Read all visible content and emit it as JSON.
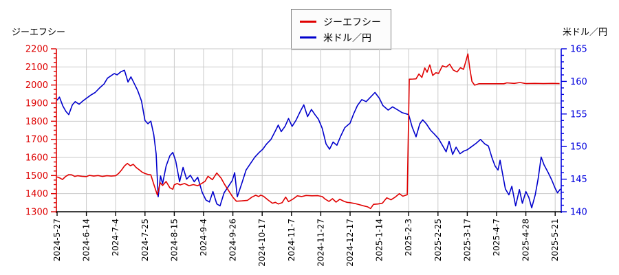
{
  "page": {
    "title_left": "ジーエフシー",
    "title_right": "米ドル／円"
  },
  "legend": {
    "items": [
      {
        "label": "ジーエフシー",
        "color": "#e00000"
      },
      {
        "label": "米ドル／円",
        "color": "#0000cc"
      }
    ]
  },
  "chart_data": {
    "type": "line",
    "title": "ジーエフシー (stock price, left axis) vs 米ドル／円 (USD/JPY, right axis)",
    "grid": true,
    "legend_position": "top-center",
    "x_tick_labels": [
      "2024-5-27",
      "2024-6-14",
      "2024-7-4",
      "2024-7-25",
      "2024-8-15",
      "2024-9-4",
      "2024-9-26",
      "2024-10-17",
      "2024-11-7",
      "2024-11-27",
      "2024-12-17",
      "2025-1-14",
      "2025-2-3",
      "2025-2-25",
      "2025-3-17",
      "2025-4-7",
      "2025-4-28",
      "2025-5-21"
    ],
    "left_axis": {
      "label": "ジーエフシー",
      "color": "#dd0000",
      "min": 1300,
      "max": 2200,
      "major_step": 100,
      "minor_step": 25,
      "tick_labels": [
        "2200",
        "2100",
        "2000",
        "1900",
        "1800",
        "1700",
        "1600",
        "1500",
        "1400",
        "1300"
      ]
    },
    "right_axis": {
      "label": "米ドル／円",
      "color": "#0000dd",
      "min": 140,
      "max": 165,
      "major_step": 5,
      "minor_step": 1,
      "tick_labels": [
        "165",
        "160",
        "155",
        "150",
        "145",
        "140"
      ]
    },
    "x_unit": "tick_index (0 = 2024-5-27 … 17 = 2025-5-21, ~15 trading days per tick)",
    "series": [
      {
        "name": "ジーエフシー",
        "axis": "left",
        "color": "#e00000",
        "points": [
          [
            0,
            1492
          ],
          [
            0.1,
            1486
          ],
          [
            0.18,
            1478
          ],
          [
            0.3,
            1496
          ],
          [
            0.4,
            1505
          ],
          [
            0.5,
            1504
          ],
          [
            0.6,
            1495
          ],
          [
            0.7,
            1499
          ],
          [
            0.85,
            1496
          ],
          [
            1,
            1494
          ],
          [
            1.1,
            1501
          ],
          [
            1.25,
            1497
          ],
          [
            1.4,
            1500
          ],
          [
            1.55,
            1495
          ],
          [
            1.7,
            1499
          ],
          [
            1.85,
            1497
          ],
          [
            2,
            1499
          ],
          [
            2.1,
            1512
          ],
          [
            2.2,
            1530
          ],
          [
            2.3,
            1553
          ],
          [
            2.4,
            1567
          ],
          [
            2.5,
            1554
          ],
          [
            2.6,
            1562
          ],
          [
            2.7,
            1544
          ],
          [
            2.8,
            1532
          ],
          [
            2.9,
            1519
          ],
          [
            3,
            1511
          ],
          [
            3.1,
            1506
          ],
          [
            3.2,
            1504
          ],
          [
            3.3,
            1452
          ],
          [
            3.42,
            1393
          ],
          [
            3.52,
            1460
          ],
          [
            3.6,
            1445
          ],
          [
            3.72,
            1467
          ],
          [
            3.85,
            1432
          ],
          [
            3.95,
            1424
          ],
          [
            4,
            1449
          ],
          [
            4.1,
            1456
          ],
          [
            4.2,
            1448
          ],
          [
            4.35,
            1456
          ],
          [
            4.5,
            1444
          ],
          [
            4.65,
            1450
          ],
          [
            4.8,
            1444
          ],
          [
            4.95,
            1458
          ],
          [
            5.05,
            1468
          ],
          [
            5.15,
            1496
          ],
          [
            5.3,
            1477
          ],
          [
            5.45,
            1514
          ],
          [
            5.6,
            1485
          ],
          [
            5.72,
            1450
          ],
          [
            5.85,
            1418
          ],
          [
            6,
            1380
          ],
          [
            6.12,
            1358
          ],
          [
            6.3,
            1360
          ],
          [
            6.5,
            1363
          ],
          [
            6.65,
            1381
          ],
          [
            6.78,
            1391
          ],
          [
            6.88,
            1384
          ],
          [
            6.95,
            1392
          ],
          [
            7.05,
            1385
          ],
          [
            7.2,
            1365
          ],
          [
            7.35,
            1347
          ],
          [
            7.45,
            1352
          ],
          [
            7.55,
            1343
          ],
          [
            7.68,
            1350
          ],
          [
            7.8,
            1381
          ],
          [
            7.9,
            1356
          ],
          [
            8.05,
            1370
          ],
          [
            8.2,
            1388
          ],
          [
            8.35,
            1384
          ],
          [
            8.5,
            1390
          ],
          [
            8.7,
            1388
          ],
          [
            8.9,
            1389
          ],
          [
            9.05,
            1384
          ],
          [
            9.15,
            1370
          ],
          [
            9.28,
            1357
          ],
          [
            9.4,
            1372
          ],
          [
            9.52,
            1353
          ],
          [
            9.65,
            1369
          ],
          [
            9.8,
            1357
          ],
          [
            9.9,
            1352
          ],
          [
            10,
            1350
          ],
          [
            10.15,
            1346
          ],
          [
            10.3,
            1340
          ],
          [
            10.45,
            1333
          ],
          [
            10.6,
            1327
          ],
          [
            10.7,
            1318
          ],
          [
            10.8,
            1341
          ],
          [
            10.95,
            1343
          ],
          [
            11.1,
            1347
          ],
          [
            11.25,
            1377
          ],
          [
            11.4,
            1366
          ],
          [
            11.55,
            1382
          ],
          [
            11.68,
            1400
          ],
          [
            11.8,
            1386
          ],
          [
            11.95,
            1394
          ],
          [
            12.02,
            2032
          ],
          [
            12.15,
            2033
          ],
          [
            12.25,
            2034
          ],
          [
            12.35,
            2061
          ],
          [
            12.45,
            2042
          ],
          [
            12.55,
            2094
          ],
          [
            12.63,
            2071
          ],
          [
            12.72,
            2111
          ],
          [
            12.82,
            2053
          ],
          [
            12.93,
            2068
          ],
          [
            13.02,
            2064
          ],
          [
            13.15,
            2106
          ],
          [
            13.28,
            2099
          ],
          [
            13.4,
            2115
          ],
          [
            13.52,
            2083
          ],
          [
            13.65,
            2072
          ],
          [
            13.77,
            2096
          ],
          [
            13.87,
            2086
          ],
          [
            13.96,
            2136
          ],
          [
            14.02,
            2172
          ],
          [
            14.08,
            2098
          ],
          [
            14.16,
            2020
          ],
          [
            14.25,
            1999
          ],
          [
            14.4,
            2007
          ],
          [
            14.7,
            2007
          ],
          [
            15,
            2007
          ],
          [
            15.25,
            2007
          ],
          [
            15.35,
            2012
          ],
          [
            15.6,
            2009
          ],
          [
            15.8,
            2014
          ],
          [
            16,
            2008
          ],
          [
            16.3,
            2009
          ],
          [
            16.6,
            2008
          ],
          [
            16.9,
            2009
          ],
          [
            17.15,
            2008
          ]
        ]
      },
      {
        "name": "米ドル／円",
        "axis": "right",
        "color": "#0000cc",
        "points": [
          [
            0,
            157.1
          ],
          [
            0.08,
            157.6
          ],
          [
            0.2,
            156.2
          ],
          [
            0.3,
            155.4
          ],
          [
            0.4,
            154.9
          ],
          [
            0.52,
            156.4
          ],
          [
            0.62,
            156.9
          ],
          [
            0.75,
            156.5
          ],
          [
            0.88,
            157.0
          ],
          [
            1,
            157.4
          ],
          [
            1.15,
            157.9
          ],
          [
            1.3,
            158.3
          ],
          [
            1.45,
            159.0
          ],
          [
            1.6,
            159.6
          ],
          [
            1.72,
            160.5
          ],
          [
            1.82,
            160.8
          ],
          [
            1.95,
            161.2
          ],
          [
            2.05,
            161.0
          ],
          [
            2.18,
            161.5
          ],
          [
            2.3,
            161.7
          ],
          [
            2.42,
            159.9
          ],
          [
            2.52,
            160.7
          ],
          [
            2.62,
            159.8
          ],
          [
            2.75,
            158.6
          ],
          [
            2.88,
            157.0
          ],
          [
            3,
            154.0
          ],
          [
            3.1,
            153.5
          ],
          [
            3.2,
            153.9
          ],
          [
            3.3,
            151.8
          ],
          [
            3.38,
            148.9
          ],
          [
            3.45,
            142.3
          ],
          [
            3.53,
            145.5
          ],
          [
            3.6,
            144.3
          ],
          [
            3.72,
            147.0
          ],
          [
            3.85,
            148.6
          ],
          [
            3.95,
            149.1
          ],
          [
            4.05,
            147.8
          ],
          [
            4.18,
            144.6
          ],
          [
            4.3,
            146.8
          ],
          [
            4.42,
            145.0
          ],
          [
            4.55,
            145.6
          ],
          [
            4.68,
            144.6
          ],
          [
            4.8,
            145.3
          ],
          [
            4.95,
            143.0
          ],
          [
            5.08,
            141.8
          ],
          [
            5.2,
            141.5
          ],
          [
            5.32,
            143.1
          ],
          [
            5.45,
            141.2
          ],
          [
            5.56,
            140.9
          ],
          [
            5.7,
            142.9
          ],
          [
            5.85,
            143.9
          ],
          [
            5.98,
            144.8
          ],
          [
            6.06,
            146.0
          ],
          [
            6.15,
            142.3
          ],
          [
            6.3,
            144.3
          ],
          [
            6.45,
            146.4
          ],
          [
            6.6,
            147.4
          ],
          [
            6.75,
            148.4
          ],
          [
            6.9,
            149.1
          ],
          [
            7.02,
            149.6
          ],
          [
            7.15,
            150.4
          ],
          [
            7.3,
            151.1
          ],
          [
            7.45,
            152.4
          ],
          [
            7.55,
            153.3
          ],
          [
            7.65,
            152.3
          ],
          [
            7.78,
            153.1
          ],
          [
            7.9,
            154.3
          ],
          [
            8.02,
            153.1
          ],
          [
            8.15,
            154.0
          ],
          [
            8.3,
            155.4
          ],
          [
            8.42,
            156.4
          ],
          [
            8.55,
            154.6
          ],
          [
            8.68,
            155.7
          ],
          [
            8.8,
            154.9
          ],
          [
            8.92,
            154.2
          ],
          [
            9.05,
            152.8
          ],
          [
            9.18,
            150.4
          ],
          [
            9.3,
            149.6
          ],
          [
            9.42,
            150.7
          ],
          [
            9.55,
            150.2
          ],
          [
            9.68,
            151.6
          ],
          [
            9.82,
            152.9
          ],
          [
            10,
            153.6
          ],
          [
            10.12,
            155.0
          ],
          [
            10.25,
            156.3
          ],
          [
            10.4,
            157.2
          ],
          [
            10.55,
            156.9
          ],
          [
            10.7,
            157.6
          ],
          [
            10.85,
            158.3
          ],
          [
            11,
            157.4
          ],
          [
            11.12,
            156.3
          ],
          [
            11.3,
            155.6
          ],
          [
            11.45,
            156.1
          ],
          [
            11.6,
            155.7
          ],
          [
            11.78,
            155.2
          ],
          [
            12,
            154.9
          ],
          [
            12.12,
            153.0
          ],
          [
            12.25,
            151.5
          ],
          [
            12.38,
            153.5
          ],
          [
            12.48,
            154.1
          ],
          [
            12.6,
            153.5
          ],
          [
            12.75,
            152.5
          ],
          [
            12.88,
            151.9
          ],
          [
            13.02,
            151.2
          ],
          [
            13.15,
            150.2
          ],
          [
            13.28,
            149.2
          ],
          [
            13.38,
            150.8
          ],
          [
            13.5,
            148.8
          ],
          [
            13.62,
            149.9
          ],
          [
            13.75,
            148.9
          ],
          [
            13.88,
            149.3
          ],
          [
            14,
            149.5
          ],
          [
            14.15,
            150.0
          ],
          [
            14.3,
            150.5
          ],
          [
            14.45,
            151.1
          ],
          [
            14.6,
            150.4
          ],
          [
            14.72,
            150.1
          ],
          [
            14.85,
            148.2
          ],
          [
            14.95,
            147.0
          ],
          [
            15.05,
            146.4
          ],
          [
            15.12,
            147.9
          ],
          [
            15.3,
            143.5
          ],
          [
            15.42,
            142.6
          ],
          [
            15.52,
            143.9
          ],
          [
            15.65,
            140.9
          ],
          [
            15.78,
            143.4
          ],
          [
            15.88,
            141.3
          ],
          [
            16,
            143.1
          ],
          [
            16.1,
            142.2
          ],
          [
            16.2,
            140.6
          ],
          [
            16.32,
            142.6
          ],
          [
            16.42,
            145.1
          ],
          [
            16.52,
            148.4
          ],
          [
            16.62,
            147.2
          ],
          [
            16.75,
            146.1
          ],
          [
            16.88,
            144.9
          ],
          [
            17,
            143.6
          ],
          [
            17.08,
            142.9
          ],
          [
            17.18,
            143.5
          ]
        ]
      }
    ]
  },
  "style": {
    "grid_color": "#c9c9c9",
    "x_axis_color": "#000000",
    "x_label_color": "#000000",
    "legend_border_color": "#808080"
  }
}
